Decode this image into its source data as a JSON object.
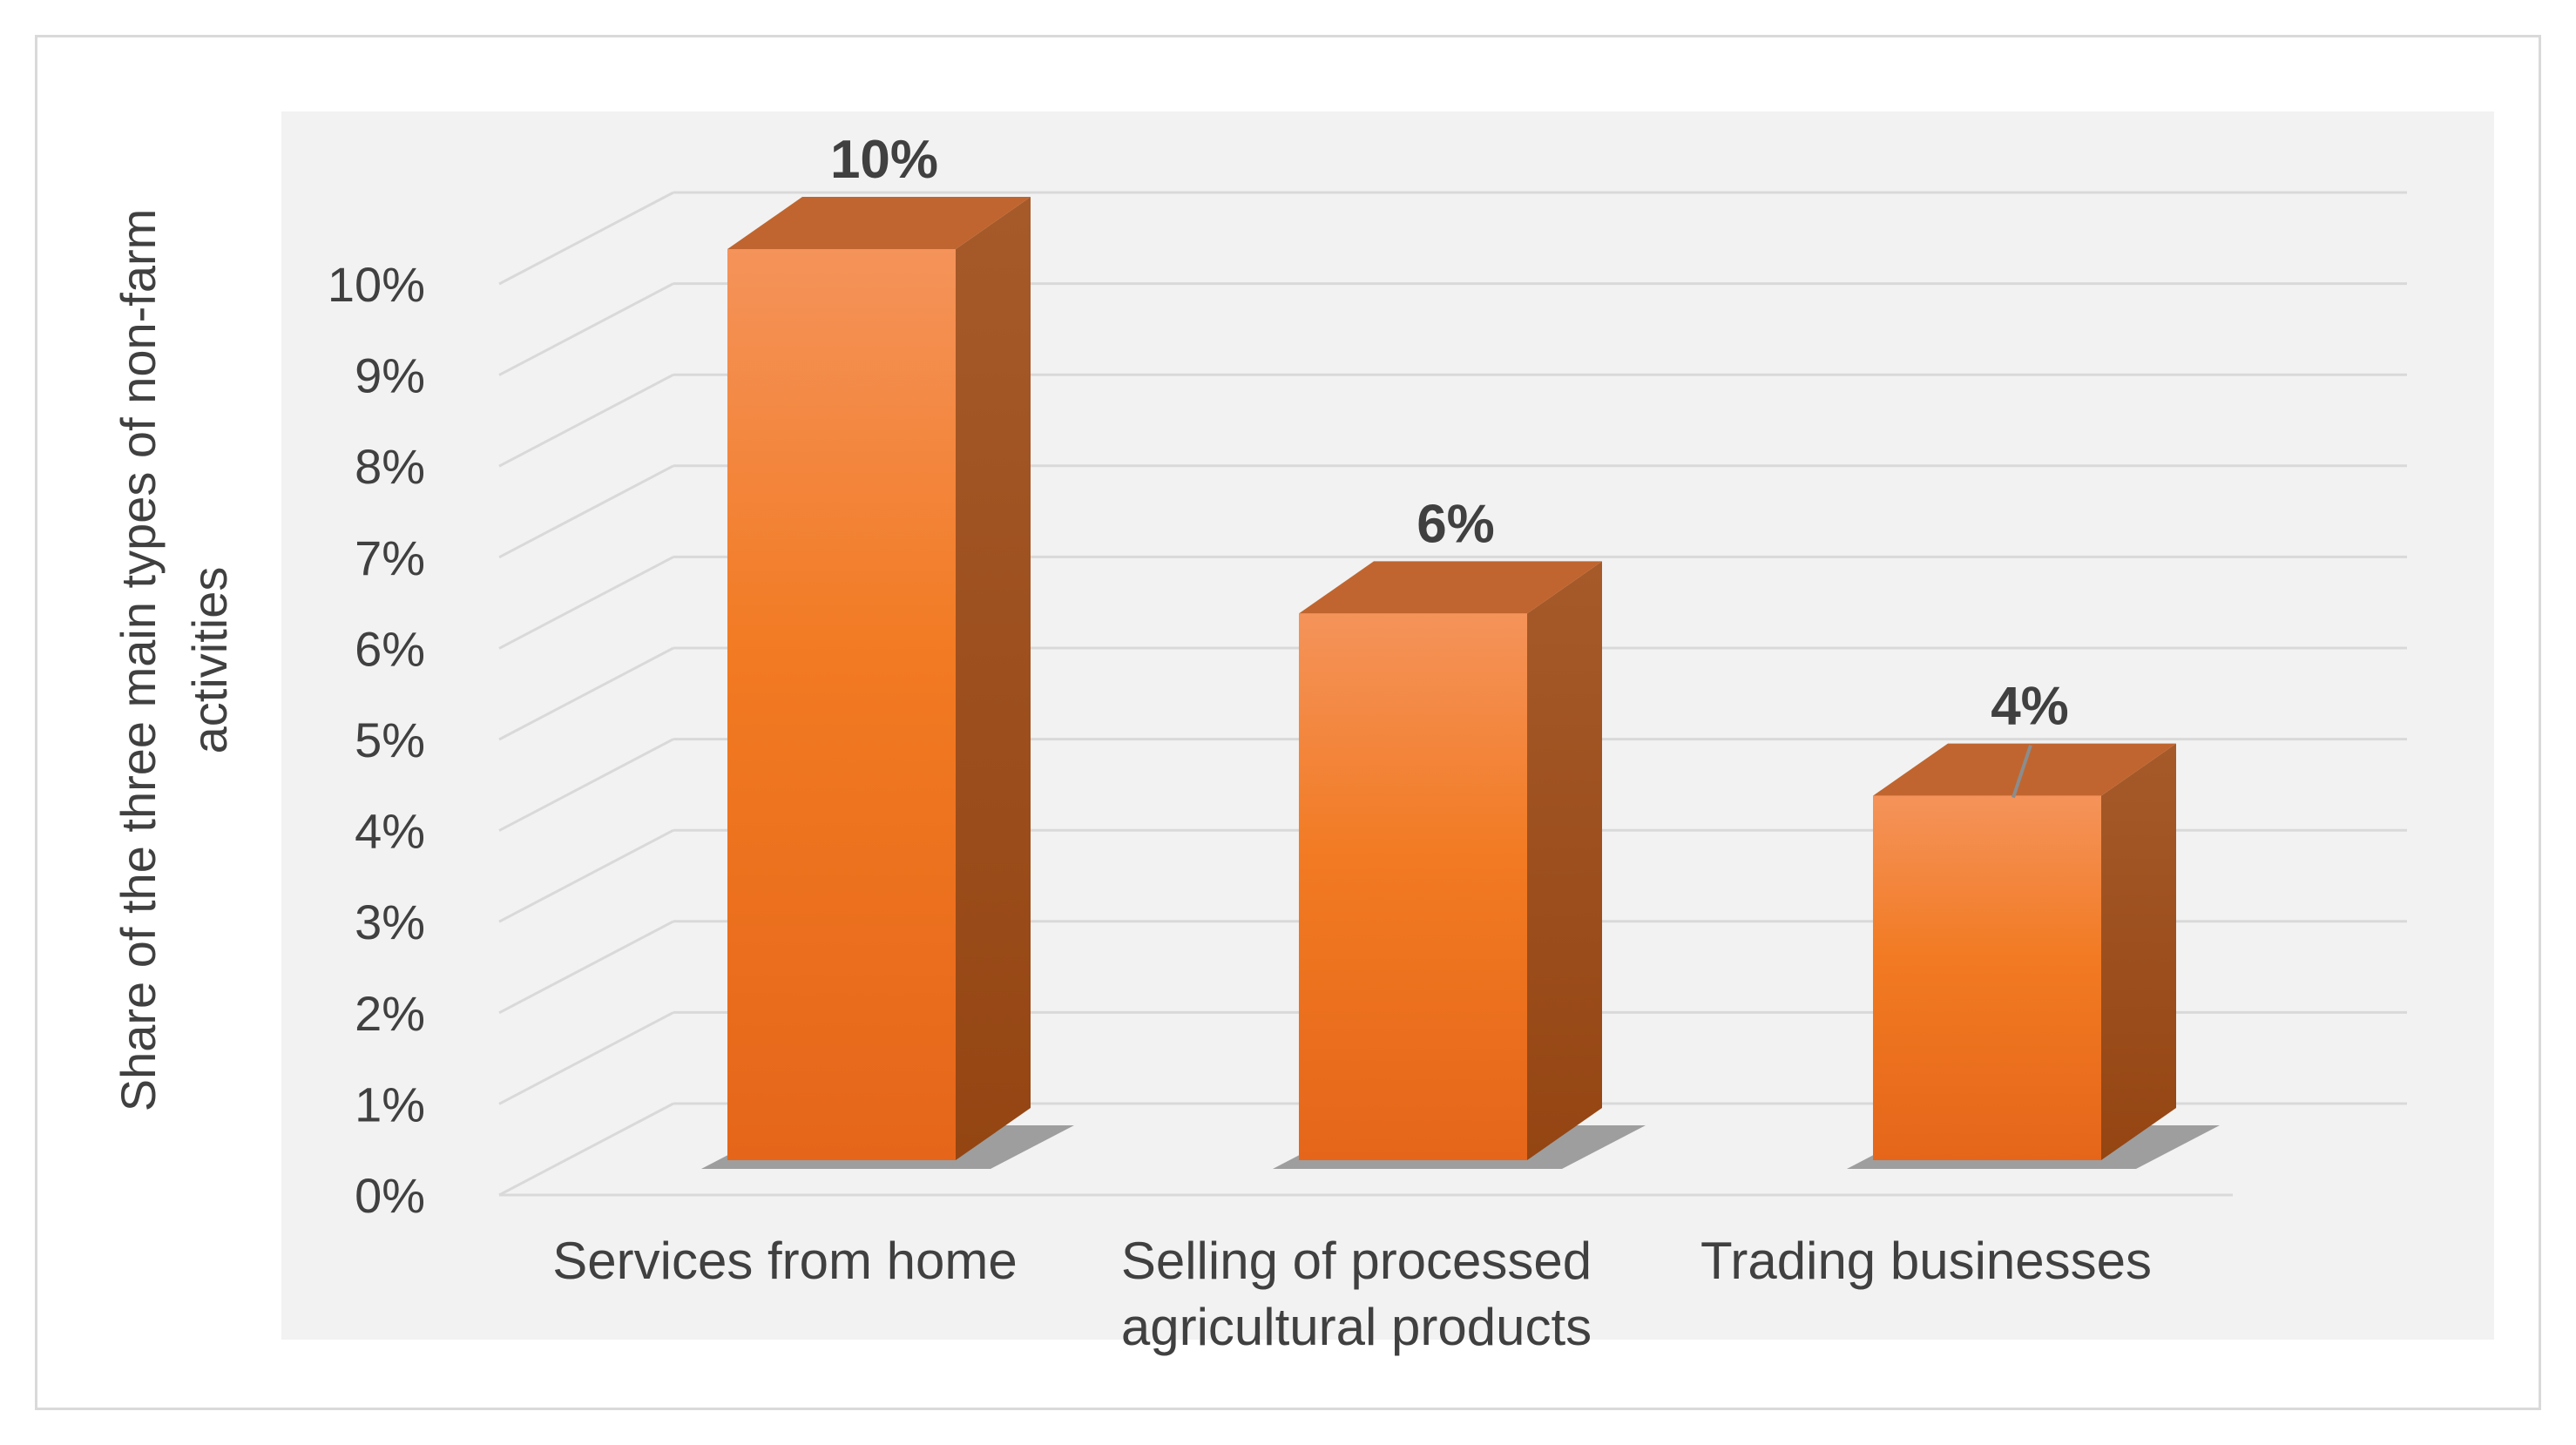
{
  "chart_data": {
    "type": "bar",
    "style": "3d-column",
    "categories": [
      [
        "Services from home"
      ],
      [
        "Selling of processed",
        "agricultural products"
      ],
      [
        "Trading businesses"
      ]
    ],
    "values": [
      10,
      6,
      4
    ],
    "data_labels": [
      "10%",
      "6%",
      "4%"
    ],
    "ylabel_lines": [
      "Share of the three main types of non-farm",
      "activities"
    ],
    "ylim": [
      0,
      10
    ],
    "yticks": [
      "0%",
      "1%",
      "2%",
      "3%",
      "4%",
      "5%",
      "6%",
      "7%",
      "8%",
      "9%",
      "10%"
    ],
    "grid": true,
    "legend": "none",
    "colors": {
      "bar_front_top": "#f4935a",
      "bar_front_mid": "#f27a22",
      "bar_front_bottom": "#e5661a",
      "bar_side": "#a14e1c",
      "bar_top": "#c0652f",
      "plot_background": "#f2f2f2",
      "gridline": "#d9d9d9",
      "text": "#404040"
    }
  }
}
